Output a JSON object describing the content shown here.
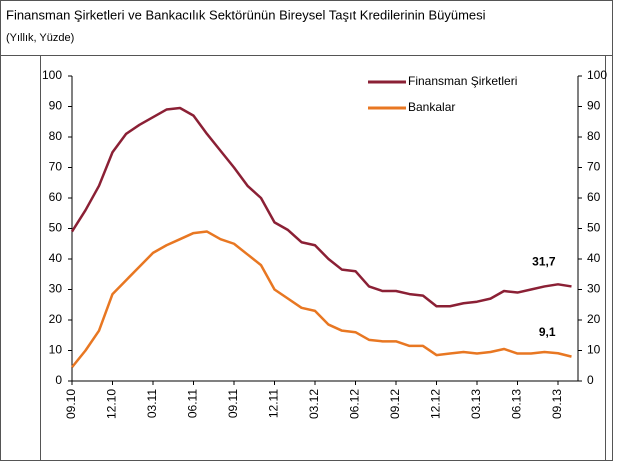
{
  "chart_data": {
    "type": "line",
    "title": "Finansman Şirketleri ve Bankacılık Sektörünün Bireysel Taşıt Kredilerinin Büyümesi",
    "subtitle": "(Yıllık, Yüzde)",
    "categories": [
      "09.10",
      null,
      null,
      "12.10",
      null,
      null,
      "03.11",
      null,
      null,
      "06.11",
      null,
      null,
      "09.11",
      null,
      null,
      "12.11",
      null,
      null,
      "03.12",
      null,
      null,
      "06.12",
      null,
      null,
      "09.12",
      null,
      null,
      "12.12",
      null,
      null,
      "03.13",
      null,
      null,
      "06.13",
      null,
      null,
      "09.13",
      null
    ],
    "series": [
      {
        "name": "Finansman Şirketleri",
        "color": "#8b2035",
        "values": [
          49,
          56,
          64,
          75,
          81,
          84,
          86.5,
          89,
          89.5,
          87,
          81,
          75.5,
          70,
          64,
          60,
          52,
          49.5,
          45.5,
          44.5,
          40,
          36.5,
          36,
          31,
          29.5,
          29.5,
          28.5,
          28,
          24.5,
          24.5,
          25.5,
          26,
          27,
          29.5,
          29,
          30,
          31,
          31.7,
          31
        ]
      },
      {
        "name": "Bankalar",
        "color": "#e87722",
        "values": [
          4.5,
          10,
          16.5,
          28.5,
          33,
          37.5,
          42,
          44.5,
          46.5,
          48.5,
          49,
          46.5,
          45,
          41.5,
          38,
          30,
          27,
          24,
          23,
          18.5,
          16.5,
          16,
          13.5,
          13,
          13,
          11.5,
          11.5,
          8.5,
          9,
          9.5,
          9,
          9.5,
          10.5,
          9,
          9,
          9.5,
          9.1,
          8
        ]
      }
    ],
    "annotations": [
      "31,7",
      "9,1"
    ],
    "ylim": [
      0,
      100
    ],
    "yticks": [
      0,
      10,
      20,
      30,
      40,
      50,
      60,
      70,
      80,
      90,
      100
    ],
    "y2lim": [
      0,
      100
    ],
    "y2ticks": [
      0,
      10,
      20,
      30,
      40,
      50,
      60,
      70,
      80,
      90,
      100
    ],
    "legend": "upper right",
    "grid": false
  }
}
